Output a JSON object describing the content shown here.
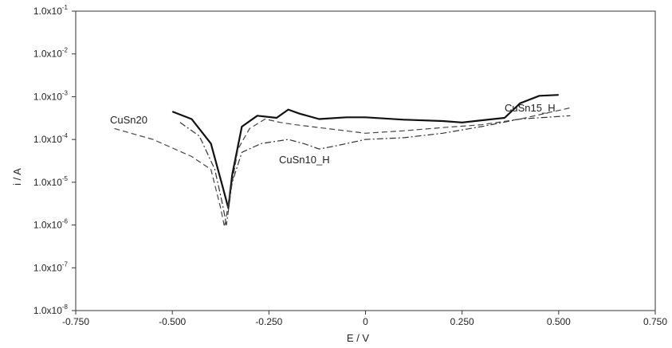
{
  "chart_data": {
    "type": "line",
    "xlabel": "E / V",
    "ylabel": "i / A",
    "xlim": [
      -0.75,
      0.75
    ],
    "ylim_log10": [
      -8,
      -1
    ],
    "yscale": "log",
    "grid": false,
    "x_ticks": [
      "-0.750",
      "-0.500",
      "-0.250",
      "0",
      "0.250",
      "0.500",
      "0.750"
    ],
    "y_ticks": [
      {
        "base": "1.0x10",
        "exp": "-1"
      },
      {
        "base": "1.0x10",
        "exp": "-2"
      },
      {
        "base": "1.0x10",
        "exp": "-3"
      },
      {
        "base": "1.0x10",
        "exp": "-4"
      },
      {
        "base": "1.0x10",
        "exp": "-5"
      },
      {
        "base": "1.0x10",
        "exp": "-6"
      },
      {
        "base": "1.0x10",
        "exp": "-7"
      },
      {
        "base": "1.0x10",
        "exp": "-8"
      }
    ],
    "series": [
      {
        "name": "CuSn15_H",
        "style": "solid",
        "stroke_width": 2.2,
        "color": "#111111",
        "points": [
          [
            -0.5,
            0.00045
          ],
          [
            -0.45,
            0.0003
          ],
          [
            -0.4,
            8e-05
          ],
          [
            -0.37,
            8e-06
          ],
          [
            -0.355,
            2.5e-06
          ],
          [
            -0.345,
            1.5e-05
          ],
          [
            -0.32,
            0.0002
          ],
          [
            -0.28,
            0.00036
          ],
          [
            -0.23,
            0.00032
          ],
          [
            -0.2,
            0.0005
          ],
          [
            -0.17,
            0.0004
          ],
          [
            -0.12,
            0.0003
          ],
          [
            -0.05,
            0.00033
          ],
          [
            0.0,
            0.00033
          ],
          [
            0.1,
            0.00029
          ],
          [
            0.2,
            0.00027
          ],
          [
            0.25,
            0.00025
          ],
          [
            0.3,
            0.00028
          ],
          [
            0.36,
            0.00032
          ],
          [
            0.4,
            0.0007
          ],
          [
            0.45,
            0.00105
          ],
          [
            0.5,
            0.0011
          ]
        ]
      },
      {
        "name": "CuSn10_H",
        "style": "dashdot",
        "stroke_width": 1.2,
        "color": "#333333",
        "points": [
          [
            -0.48,
            0.00025
          ],
          [
            -0.43,
            0.00012
          ],
          [
            -0.39,
            2e-05
          ],
          [
            -0.37,
            3e-06
          ],
          [
            -0.36,
            1e-06
          ],
          [
            -0.345,
            1e-05
          ],
          [
            -0.32,
            5e-05
          ],
          [
            -0.27,
            8e-05
          ],
          [
            -0.2,
            0.0001
          ],
          [
            -0.16,
            8e-05
          ],
          [
            -0.12,
            6e-05
          ],
          [
            -0.08,
            7e-05
          ],
          [
            0.0,
            0.0001
          ],
          [
            0.1,
            0.00011
          ],
          [
            0.2,
            0.00014
          ],
          [
            0.3,
            0.0002
          ],
          [
            0.4,
            0.0003
          ],
          [
            0.53,
            0.00036
          ]
        ]
      },
      {
        "name": "CuSn20",
        "style": "dashed",
        "stroke_width": 1.2,
        "color": "#444444",
        "points": [
          [
            -0.65,
            0.00018
          ],
          [
            -0.55,
            0.0001
          ],
          [
            -0.45,
            4e-05
          ],
          [
            -0.4,
            2e-05
          ],
          [
            -0.375,
            2.5e-06
          ],
          [
            -0.365,
            9e-07
          ],
          [
            -0.355,
            3e-06
          ],
          [
            -0.33,
            6e-05
          ],
          [
            -0.3,
            0.00018
          ],
          [
            -0.26,
            0.0003
          ],
          [
            -0.22,
            0.00025
          ],
          [
            -0.18,
            0.00022
          ],
          [
            -0.1,
            0.00018
          ],
          [
            0.0,
            0.00014
          ],
          [
            0.1,
            0.00016
          ],
          [
            0.2,
            0.00019
          ],
          [
            0.3,
            0.00022
          ],
          [
            0.4,
            0.0003
          ],
          [
            0.53,
            0.00055
          ]
        ]
      }
    ],
    "annotations": [
      {
        "text": "CuSn15_H",
        "series": "CuSn15_H"
      },
      {
        "text": "CuSn20",
        "series": "CuSn20"
      },
      {
        "text": "CuSn10_H",
        "series": "CuSn10_H"
      }
    ]
  }
}
